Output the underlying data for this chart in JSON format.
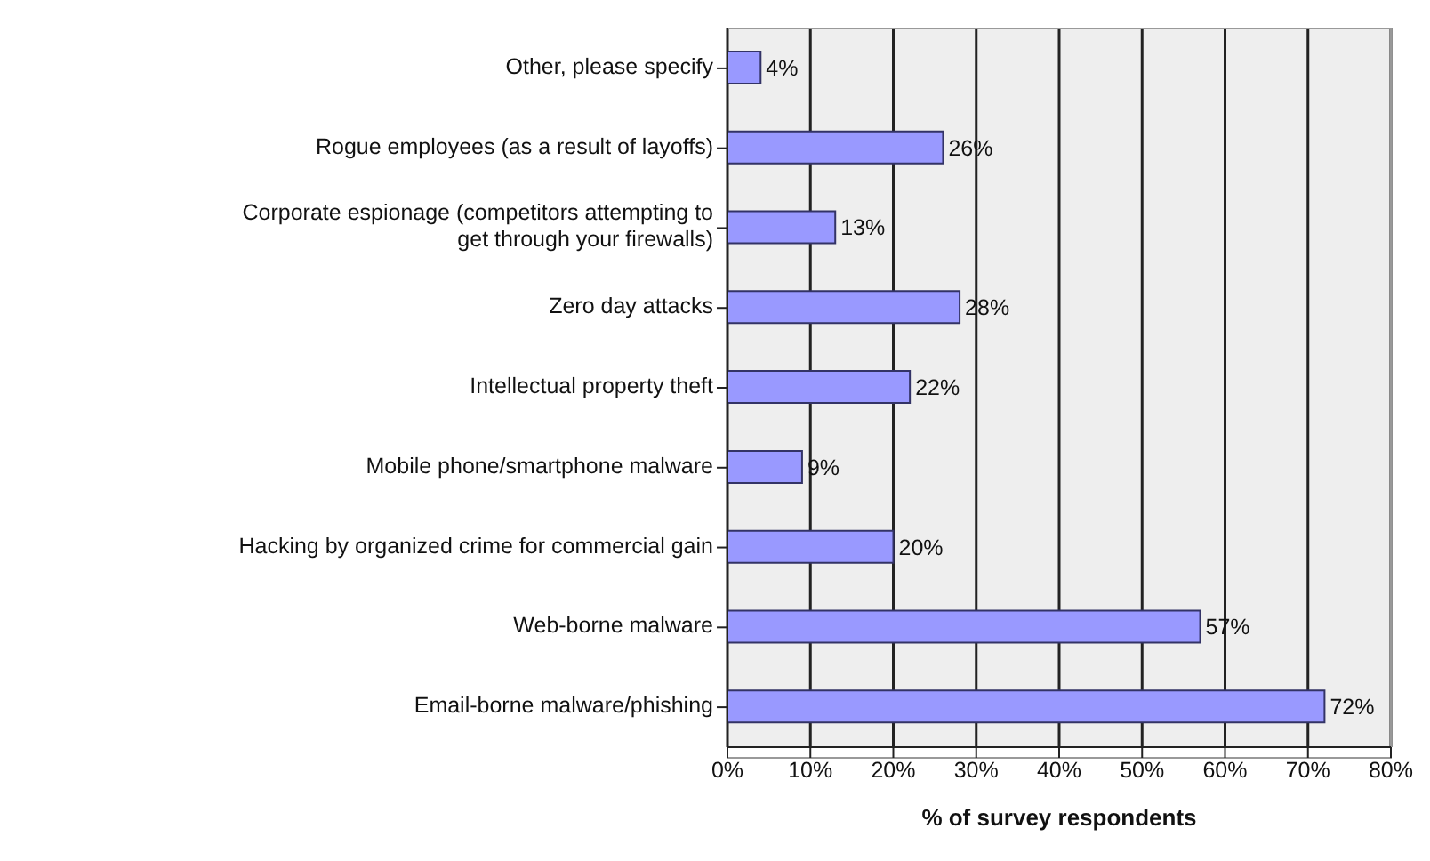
{
  "chart_data": {
    "type": "bar",
    "orientation": "horizontal",
    "xlabel": "% of survey respondents",
    "categories": [
      "Other, please specify",
      "Rogue employees (as a result of layoffs)",
      "Corporate espionage (competitors attempting to get through your firewalls)",
      "Zero day attacks",
      "Intellectual property theft",
      "Mobile phone/smartphone malware",
      "Hacking by organized crime for commercial gain",
      "Web-borne malware",
      "Email-borne malware/phishing"
    ],
    "values": [
      4,
      26,
      13,
      28,
      22,
      9,
      20,
      57,
      72
    ],
    "value_labels": [
      "4%",
      "26%",
      "13%",
      "28%",
      "22%",
      "9%",
      "20%",
      "57%",
      "72%"
    ],
    "color": "#9999ff",
    "xlim": [
      0,
      80
    ],
    "xticks": [
      {
        "value": 0,
        "label": "0%"
      },
      {
        "value": 10,
        "label": "10%"
      },
      {
        "value": 20,
        "label": "20%"
      },
      {
        "value": 30,
        "label": "30%"
      },
      {
        "value": 40,
        "label": "40%"
      },
      {
        "value": 50,
        "label": "50%"
      },
      {
        "value": 60,
        "label": "60%"
      },
      {
        "value": 70,
        "label": "70%"
      },
      {
        "value": 80,
        "label": "80%"
      }
    ],
    "grid": "x",
    "legend": false
  }
}
